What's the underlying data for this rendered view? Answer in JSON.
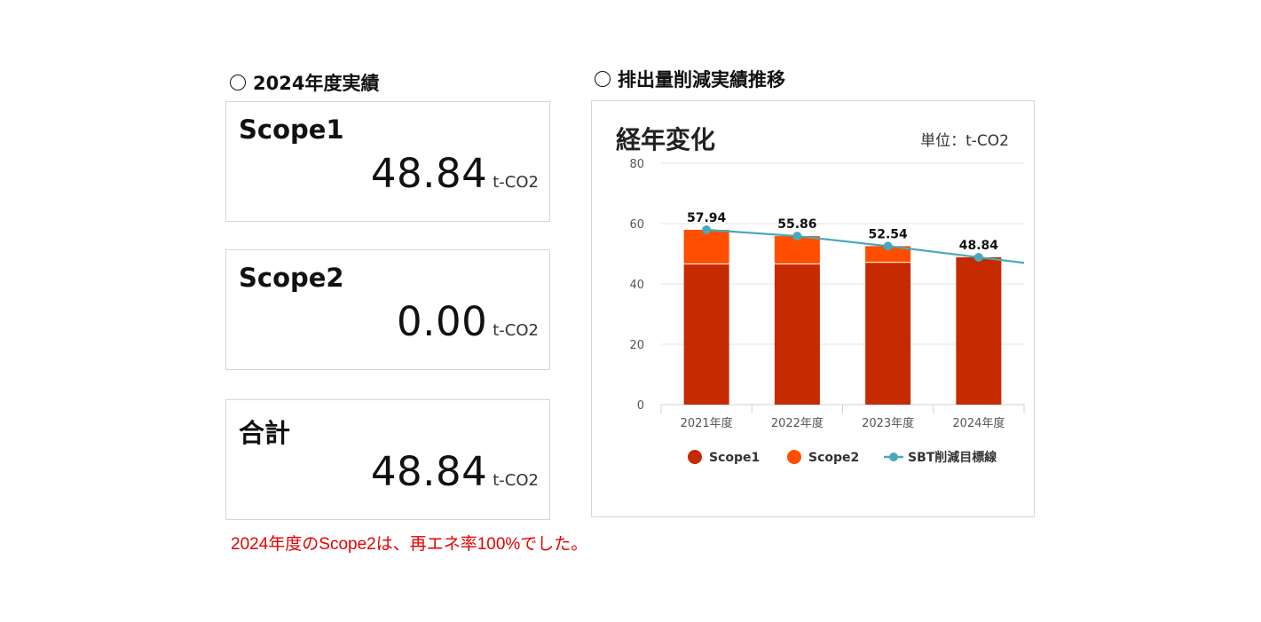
{
  "left_section": {
    "title": "2024年度実績"
  },
  "right_section": {
    "title": "排出量削減実績推移"
  },
  "cards": [
    {
      "label": "Scope1",
      "value": "48.84",
      "unit": "t-CO2"
    },
    {
      "label": "Scope2",
      "value": "0.00",
      "unit": "t-CO2"
    },
    {
      "label": "合計",
      "value": "48.84",
      "unit": "t-CO2"
    }
  ],
  "note": "2024年度のScope2は、再エネ率100%でした。",
  "colors": {
    "scope1": "#C62A00",
    "scope2": "#FF4E00",
    "sbt": "#4BA8BC"
  },
  "chart_data": {
    "type": "bar",
    "title": "経年変化",
    "unit_label": "単位：t-CO2",
    "stacked": true,
    "categories": [
      "2021年度",
      "2022年度",
      "2023年度",
      "2024年度"
    ],
    "ylim": [
      0,
      80
    ],
    "yticks": [
      0,
      20,
      40,
      60,
      80
    ],
    "grid": true,
    "legend_position": "bottom",
    "series": [
      {
        "name": "Scope1",
        "type": "bar",
        "values": [
          46.5,
          46.5,
          47.0,
          48.84
        ]
      },
      {
        "name": "Scope2",
        "type": "bar",
        "values": [
          11.44,
          9.36,
          5.54,
          0.0
        ]
      },
      {
        "name": "SBT削減目標線",
        "type": "line",
        "values": [
          57.94,
          55.86,
          52.54,
          48.84
        ]
      }
    ],
    "data_labels": [
      "57.94",
      "55.86",
      "52.54",
      "48.84"
    ]
  }
}
